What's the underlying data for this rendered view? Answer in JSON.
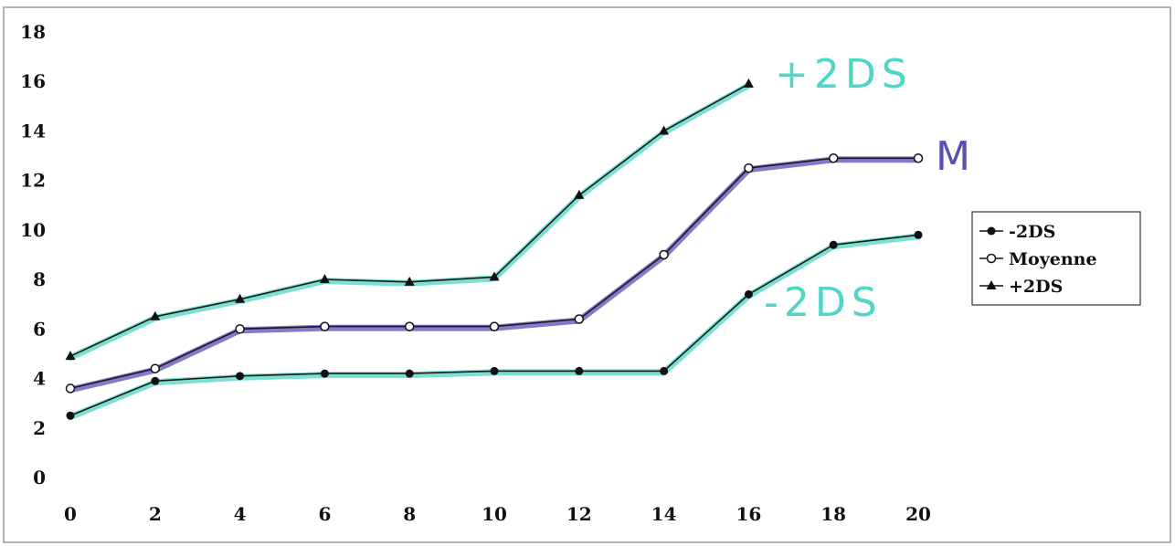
{
  "chart_data": {
    "type": "line",
    "x": [
      0,
      2,
      4,
      6,
      8,
      10,
      12,
      14,
      16,
      18,
      20
    ],
    "xlim": [
      0,
      20
    ],
    "ylim": [
      0,
      18
    ],
    "xticks": [
      "0",
      "2",
      "4",
      "6",
      "8",
      "10",
      "12",
      "14",
      "16",
      "18",
      "20"
    ],
    "yticks": [
      "0",
      "2",
      "4",
      "6",
      "8",
      "10",
      "12",
      "14",
      "16",
      "18"
    ],
    "grid": false,
    "legend_position": "right",
    "series": [
      {
        "name": "-2DS",
        "marker": "circle-filled",
        "highlight_color": "#4fd6c4",
        "values": [
          2.5,
          3.9,
          4.1,
          4.2,
          4.2,
          4.3,
          4.3,
          4.3,
          7.4,
          9.4,
          9.8
        ]
      },
      {
        "name": "Moyenne",
        "marker": "circle-open",
        "highlight_color": "#5a4fb8",
        "values": [
          3.6,
          4.4,
          6.0,
          6.1,
          6.1,
          6.1,
          6.4,
          9.0,
          12.5,
          12.9,
          12.9
        ]
      },
      {
        "name": "+2DS",
        "marker": "triangle-filled",
        "highlight_color": "#4fd6c4",
        "values": [
          4.9,
          6.5,
          7.2,
          8.0,
          7.9,
          8.1,
          11.4,
          14.0,
          15.9,
          null,
          null
        ]
      }
    ],
    "annotations": [
      {
        "text": "+2DS",
        "series": "+2DS",
        "color": "#4fd6c4"
      },
      {
        "text": "M",
        "series": "Moyenne",
        "color": "#5a4fb8"
      },
      {
        "text": "-2DS",
        "series": "-2DS",
        "color": "#4fd6c4"
      }
    ]
  }
}
